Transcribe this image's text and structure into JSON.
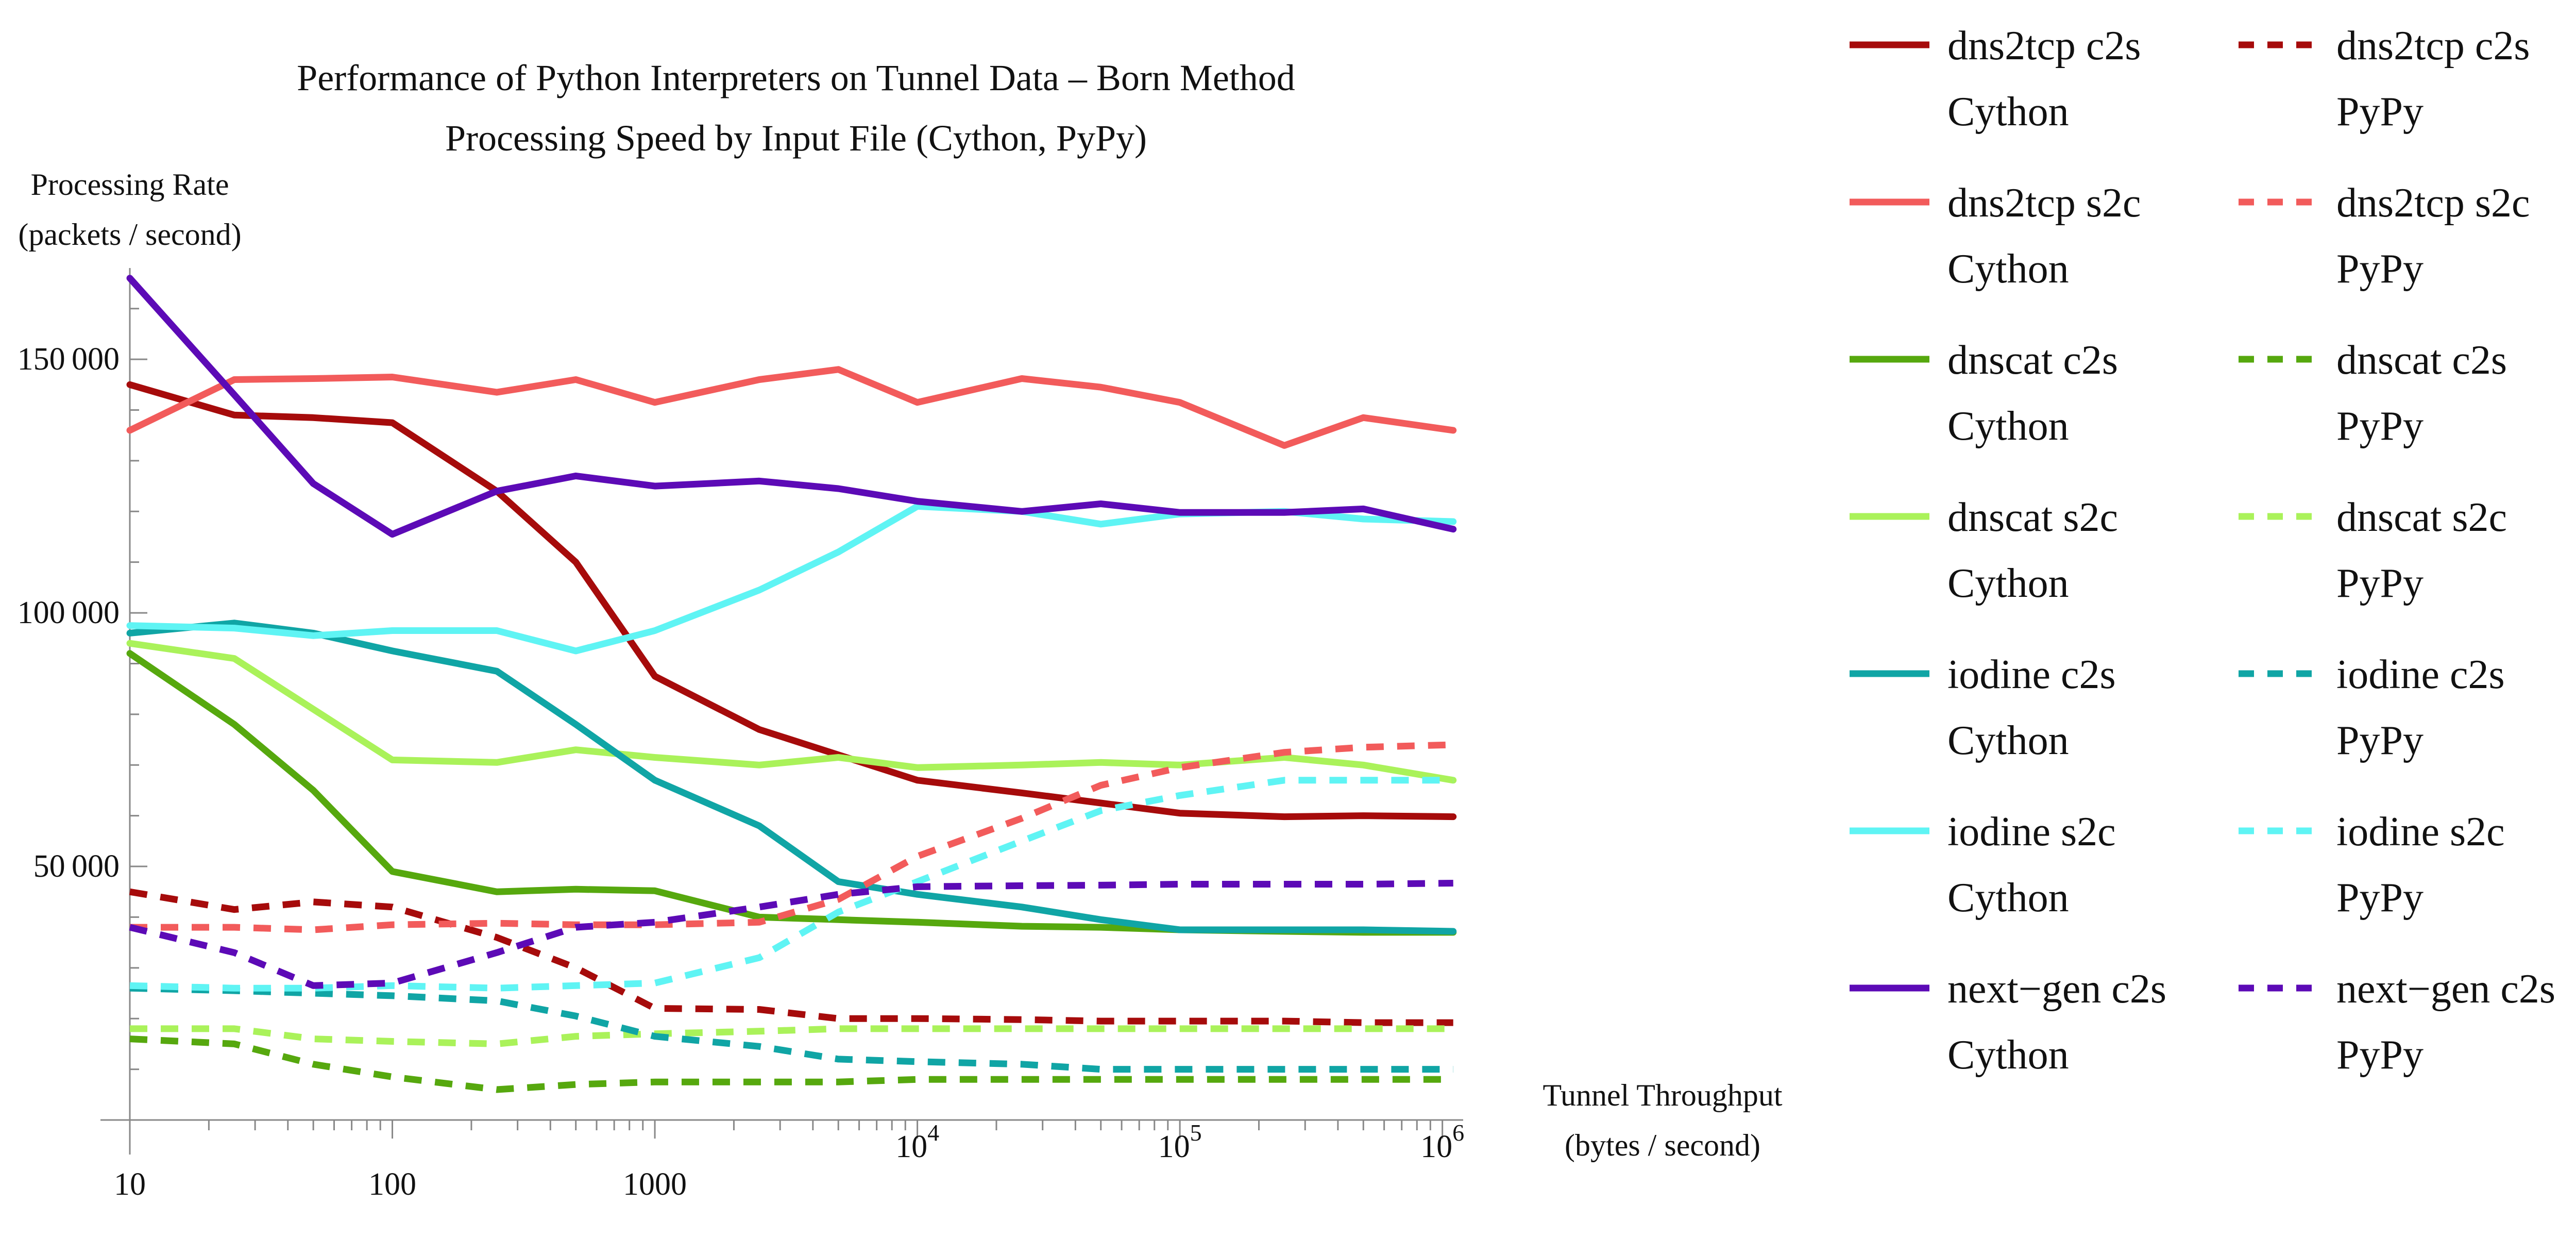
{
  "chart_data": {
    "type": "line",
    "title": "Performance of Python Interpreters on Tunnel Data – Born Method",
    "subtitle": "Processing Speed by Input File (Cython, PyPy)",
    "ylabel_line1": "Processing Rate",
    "ylabel_line2": "(packets / second)",
    "xlabel_line1": "Tunnel Throughput",
    "xlabel_line2": "(bytes / second)",
    "x_scale": "log",
    "xlim": [
      10,
      1200000
    ],
    "ylim": [
      0,
      168000
    ],
    "x_ticks": [
      {
        "value": 10,
        "label": "10",
        "style": "plain"
      },
      {
        "value": 100,
        "label": "100",
        "style": "plain"
      },
      {
        "value": 1000,
        "label": "1000",
        "style": "plain"
      },
      {
        "value": 10000,
        "base": "10",
        "exp": "4",
        "style": "power"
      },
      {
        "value": 100000,
        "base": "10",
        "exp": "5",
        "style": "power"
      },
      {
        "value": 1000000,
        "base": "10",
        "exp": "6",
        "style": "power"
      }
    ],
    "y_ticks": [
      {
        "value": 50000,
        "label": "50 000"
      },
      {
        "value": 100000,
        "label": "100 000"
      },
      {
        "value": 150000,
        "label": "150 000"
      }
    ],
    "x": [
      10,
      25,
      50,
      100,
      250,
      500,
      1000,
      2500,
      5000,
      10000,
      25000,
      50000,
      100000,
      250000,
      500000,
      1100000
    ],
    "grid": false,
    "legend_placement": "right",
    "series": [
      {
        "name": "dns2tcp c2s",
        "name2": "Cython",
        "color": "#a60b0b",
        "dash": false,
        "values": [
          145000,
          139000,
          138500,
          137500,
          124000,
          110000,
          87500,
          77000,
          72000,
          67000,
          64500,
          62500,
          60500,
          59800,
          60000,
          59800
        ]
      },
      {
        "name": "dns2tcp s2c",
        "name2": "Cython",
        "color": "#f25b5b",
        "dash": false,
        "values": [
          136000,
          146000,
          146200,
          146500,
          143500,
          146000,
          141500,
          146000,
          148000,
          141500,
          146200,
          144500,
          141500,
          133000,
          138500,
          136000
        ]
      },
      {
        "name": "dnscat c2s",
        "name2": "Cython",
        "color": "#56a80e",
        "dash": false,
        "values": [
          92000,
          78000,
          65000,
          49000,
          45000,
          45500,
          45200,
          40000,
          39500,
          39000,
          38200,
          38000,
          37500,
          37200,
          37000,
          37000
        ]
      },
      {
        "name": "dnscat s2c",
        "name2": "Cython",
        "color": "#aaf25a",
        "dash": false,
        "values": [
          94000,
          91000,
          81000,
          71000,
          70500,
          73000,
          71500,
          70000,
          71500,
          69500,
          70000,
          70500,
          70000,
          71500,
          70000,
          67000
        ]
      },
      {
        "name": "iodine c2s",
        "name2": "Cython",
        "color": "#10a5a5",
        "dash": false,
        "values": [
          96000,
          98000,
          96000,
          92500,
          88500,
          78000,
          67000,
          58000,
          47000,
          44500,
          42000,
          39500,
          37500,
          37500,
          37500,
          37200
        ]
      },
      {
        "name": "iodine s2c",
        "name2": "Cython",
        "color": "#5ff4f4",
        "dash": false,
        "values": [
          97500,
          97000,
          95500,
          96500,
          96500,
          92500,
          96500,
          104500,
          112000,
          121000,
          120000,
          117500,
          119500,
          120000,
          118500,
          118000
        ]
      },
      {
        "name": "next−gen c2s",
        "name2": "Cython",
        "color": "#5c0ab6",
        "dash": false,
        "values": [
          166000,
          143000,
          125500,
          115500,
          124000,
          127000,
          125000,
          126000,
          124500,
          122000,
          120000,
          121500,
          119800,
          119800,
          120500,
          116500
        ]
      },
      {
        "name": "dns2tcp c2s",
        "name2": "PyPy",
        "color": "#a60b0b",
        "dash": true,
        "values": [
          45000,
          41500,
          43000,
          42000,
          36000,
          30000,
          22000,
          21800,
          20000,
          20000,
          19800,
          19500,
          19500,
          19500,
          19200,
          19200
        ]
      },
      {
        "name": "dns2tcp s2c",
        "name2": "PyPy",
        "color": "#f25b5b",
        "dash": true,
        "values": [
          38000,
          38000,
          37500,
          38500,
          38800,
          38500,
          38500,
          39000,
          43500,
          52000,
          59500,
          66000,
          69500,
          72500,
          73500,
          74000
        ]
      },
      {
        "name": "dnscat c2s",
        "name2": "PyPy",
        "color": "#56a80e",
        "dash": true,
        "values": [
          16000,
          15000,
          11000,
          8500,
          6000,
          7000,
          7500,
          7500,
          7500,
          8000,
          8000,
          8000,
          8000,
          8000,
          8000,
          8000
        ]
      },
      {
        "name": "dnscat s2c",
        "name2": "PyPy",
        "color": "#aaf25a",
        "dash": true,
        "values": [
          18000,
          18000,
          16000,
          15500,
          15000,
          16500,
          17000,
          17500,
          18000,
          18000,
          18000,
          18000,
          18000,
          18000,
          18000,
          18000
        ]
      },
      {
        "name": "iodine c2s",
        "name2": "PyPy",
        "color": "#10a5a5",
        "dash": true,
        "values": [
          26000,
          25500,
          25000,
          24500,
          23500,
          20500,
          16500,
          14500,
          12000,
          11500,
          11000,
          10000,
          10000,
          10000,
          10000,
          10000
        ]
      },
      {
        "name": "iodine s2c",
        "name2": "PyPy",
        "color": "#5ff4f4",
        "dash": true,
        "values": [
          26500,
          26000,
          26000,
          26500,
          26000,
          26500,
          27000,
          32000,
          41000,
          47000,
          55000,
          61000,
          64000,
          67000,
          67000,
          67000
        ]
      },
      {
        "name": "next−gen c2s",
        "name2": "PyPy",
        "color": "#5c0ab6",
        "dash": true,
        "values": [
          38000,
          33000,
          26500,
          27000,
          33000,
          38000,
          39000,
          42000,
          44500,
          46000,
          46200,
          46300,
          46500,
          46500,
          46500,
          46700
        ]
      }
    ]
  }
}
